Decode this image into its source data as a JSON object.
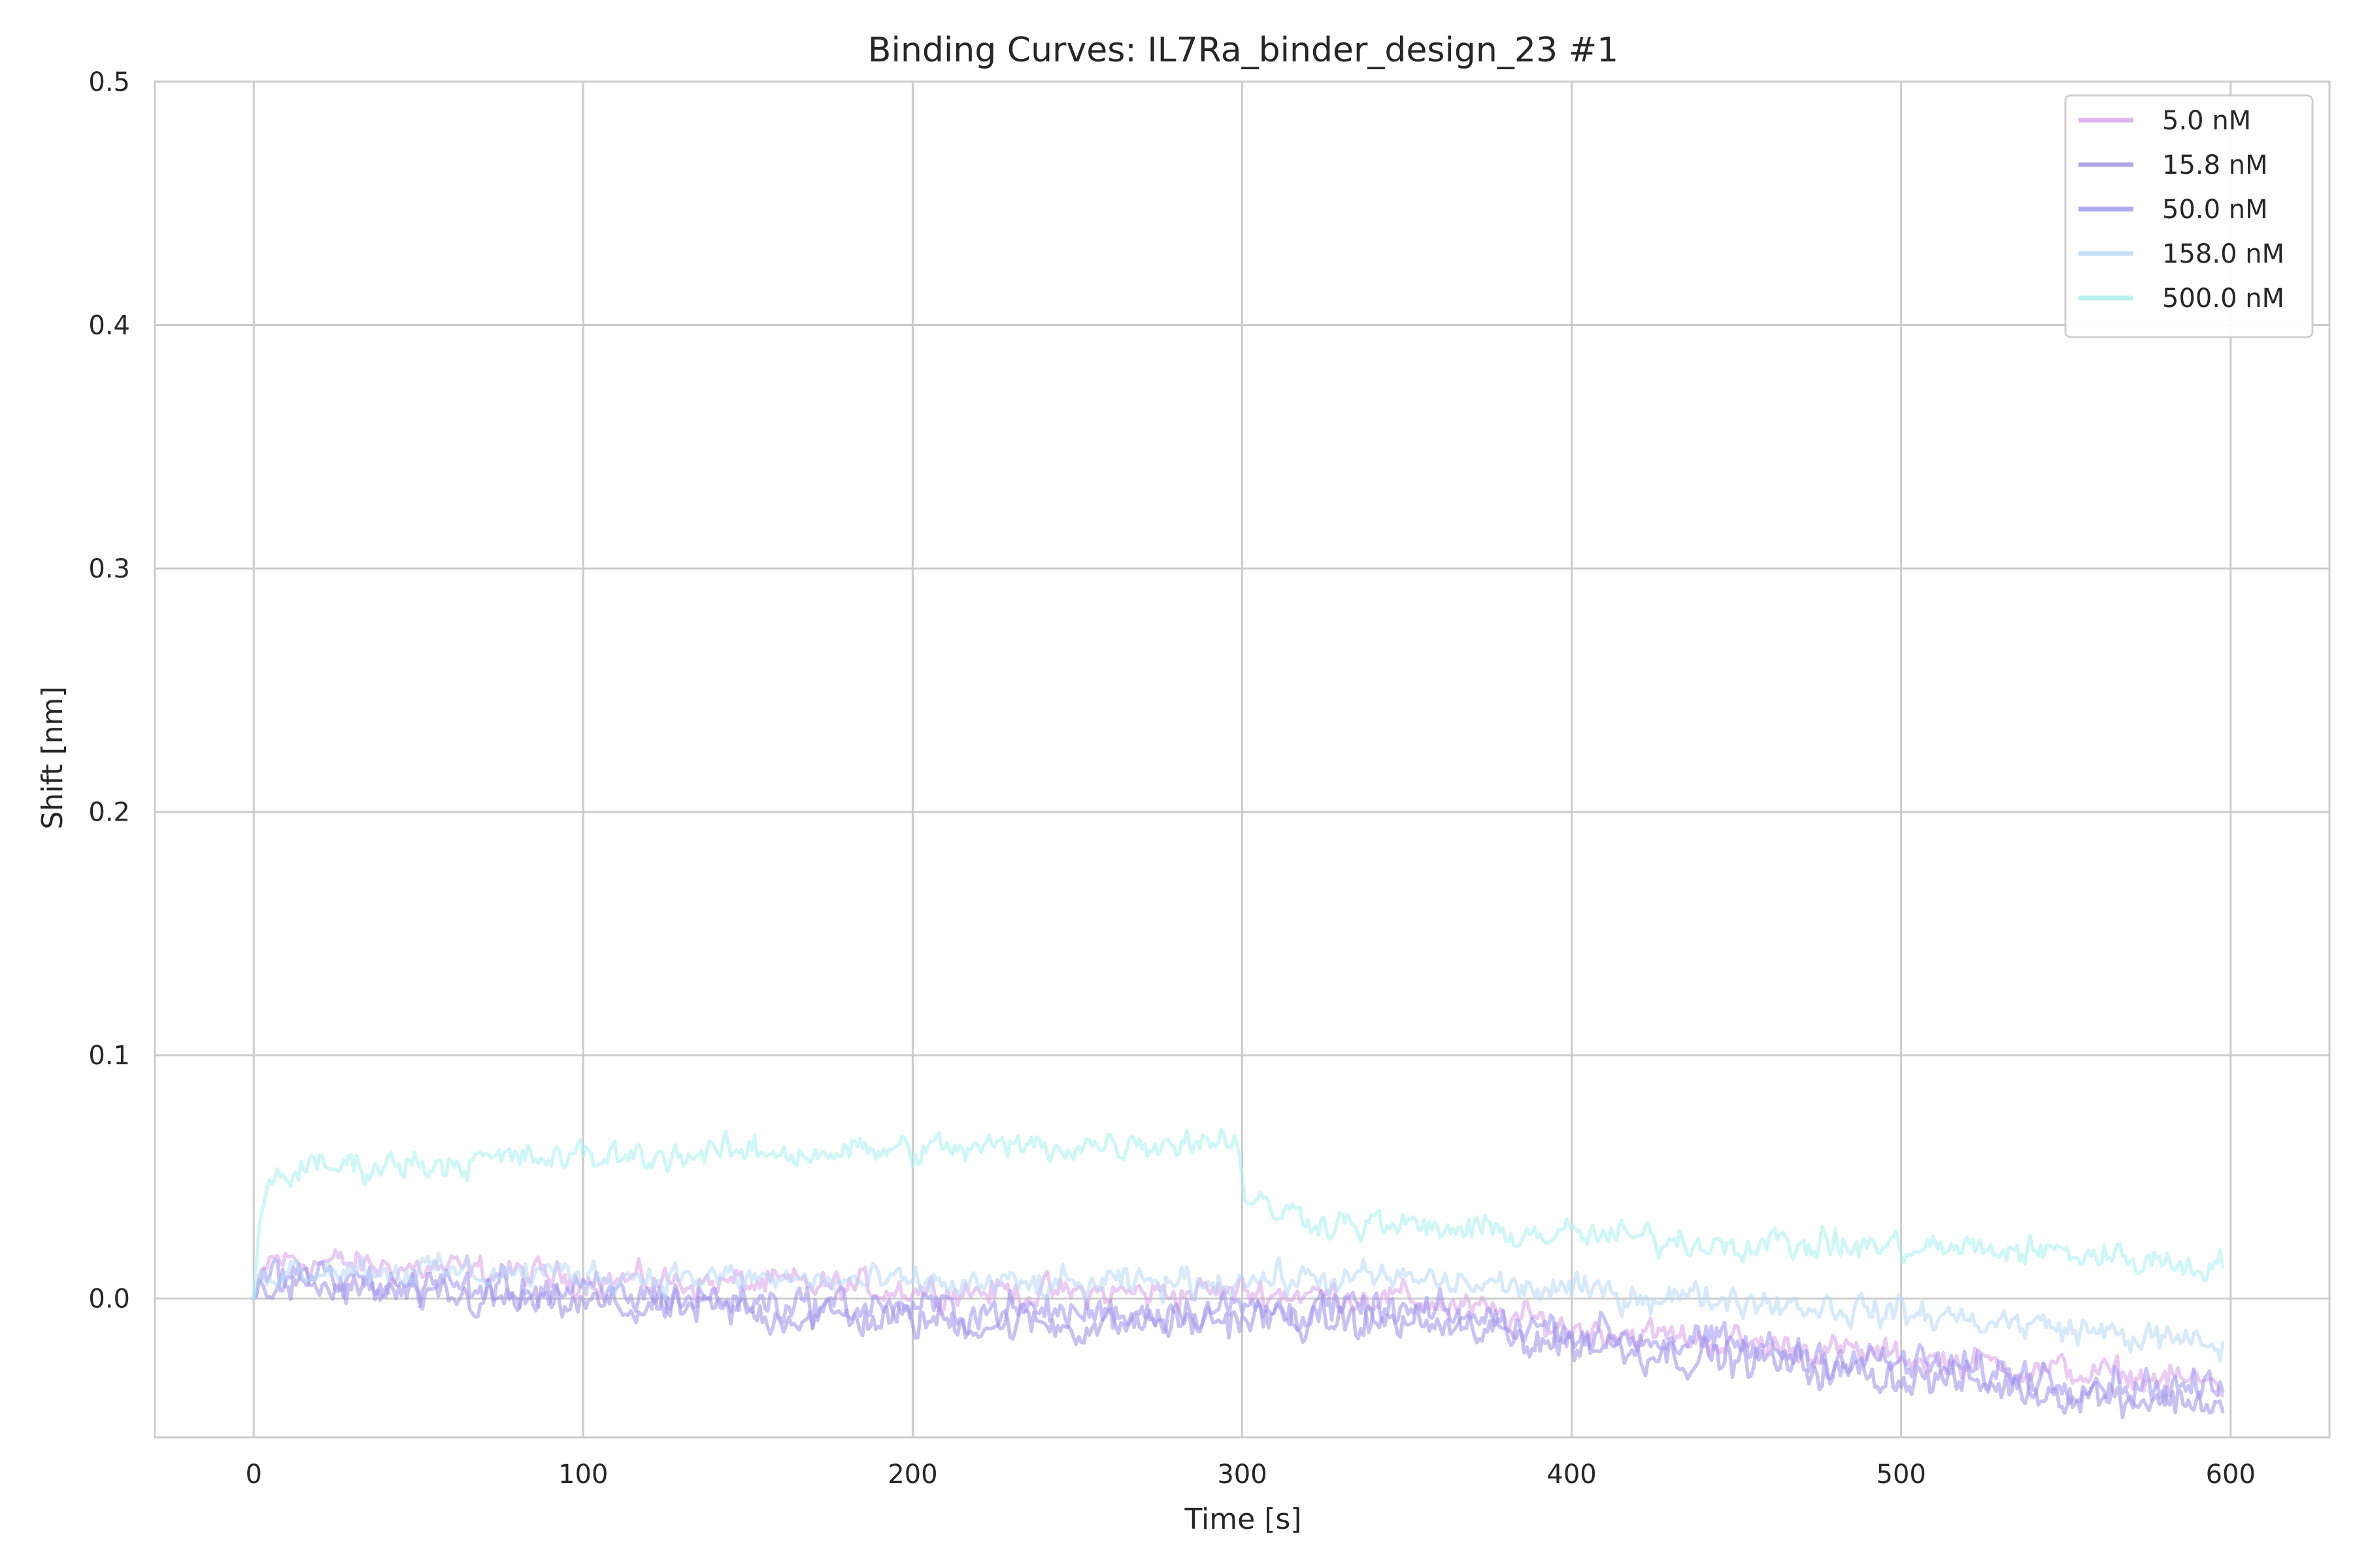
{
  "chart_data": {
    "type": "line",
    "title": "Binding Curves: IL7Ra_binder_design_23 #1",
    "xlabel": "Time [s]",
    "ylabel": "Shift [nm]",
    "xlim": [
      -30,
      630
    ],
    "ylim": [
      -0.057,
      0.5
    ],
    "xticks": [
      0,
      100,
      200,
      300,
      400,
      500,
      600
    ],
    "yticks": [
      0.0,
      0.1,
      0.2,
      0.3,
      0.4,
      0.5
    ],
    "xtick_labels": [
      "0",
      "100",
      "200",
      "300",
      "400",
      "500",
      "600"
    ],
    "ytick_labels": [
      "0.0",
      "0.1",
      "0.2",
      "0.3",
      "0.4",
      "0.5"
    ],
    "grid": true,
    "legend_position": "top-right",
    "series": [
      {
        "name": "5.0 nM",
        "color": "#d8a0e6",
        "x": [
          0,
          5,
          20,
          40,
          60,
          100,
          150,
          200,
          250,
          300,
          350,
          400,
          450,
          500,
          550,
          598
        ],
        "y": [
          0.0,
          0.016,
          0.015,
          0.013,
          0.012,
          0.008,
          0.006,
          0.004,
          0.002,
          0.003,
          0.0,
          -0.012,
          -0.018,
          -0.024,
          -0.03,
          -0.035
        ],
        "noise": 0.004
      },
      {
        "name": "15.8 nM",
        "color": "#9f8ee0",
        "x": [
          0,
          5,
          20,
          40,
          60,
          100,
          150,
          200,
          250,
          300,
          350,
          400,
          450,
          500,
          550,
          598
        ],
        "y": [
          0.0,
          0.006,
          0.004,
          0.002,
          0.0,
          -0.003,
          -0.006,
          -0.009,
          -0.011,
          -0.008,
          -0.01,
          -0.018,
          -0.025,
          -0.032,
          -0.038,
          -0.043
        ],
        "noise": 0.005
      },
      {
        "name": "50.0 nM",
        "color": "#9c93ee",
        "x": [
          0,
          5,
          20,
          40,
          60,
          100,
          150,
          200,
          250,
          300,
          350,
          400,
          450,
          500,
          550,
          598
        ],
        "y": [
          0.0,
          0.009,
          0.008,
          0.006,
          0.005,
          0.002,
          -0.001,
          -0.004,
          -0.006,
          -0.004,
          -0.006,
          -0.013,
          -0.02,
          -0.027,
          -0.033,
          -0.038
        ],
        "noise": 0.005
      },
      {
        "name": "158.0 nM",
        "color": "#b8d8f5",
        "x": [
          0,
          5,
          20,
          40,
          60,
          100,
          150,
          200,
          250,
          300,
          350,
          400,
          450,
          500,
          550,
          598
        ],
        "y": [
          0.0,
          0.012,
          0.013,
          0.012,
          0.011,
          0.01,
          0.008,
          0.006,
          0.005,
          0.008,
          0.008,
          0.003,
          0.0,
          -0.006,
          -0.012,
          -0.02
        ],
        "noise": 0.004
      },
      {
        "name": "500.0 nM",
        "color": "#a9f0ee",
        "x": [
          0,
          2,
          5,
          20,
          50,
          100,
          150,
          200,
          250,
          299,
          301,
          320,
          350,
          400,
          450,
          500,
          550,
          598
        ],
        "y": [
          0.0,
          0.035,
          0.05,
          0.054,
          0.056,
          0.058,
          0.06,
          0.061,
          0.063,
          0.066,
          0.04,
          0.033,
          0.029,
          0.026,
          0.023,
          0.021,
          0.019,
          0.013
        ],
        "noise": 0.004
      }
    ]
  }
}
